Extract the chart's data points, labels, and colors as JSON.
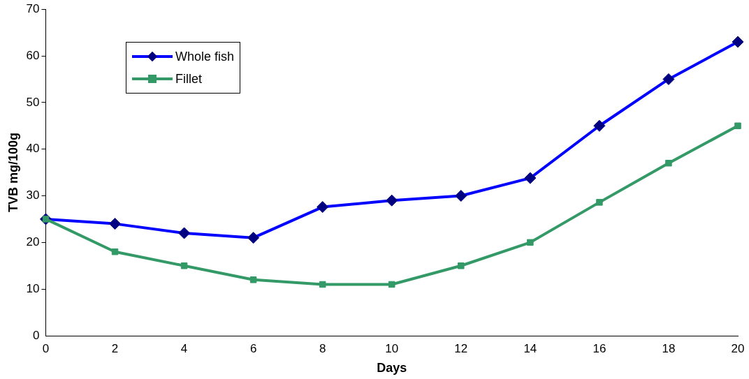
{
  "chart_data": {
    "type": "line",
    "xlabel": "Days",
    "ylabel": "TVB mg/100g",
    "x": [
      0,
      2,
      4,
      6,
      8,
      10,
      12,
      14,
      16,
      18,
      20
    ],
    "series": [
      {
        "name": "Whole fish",
        "color": "#0000ff",
        "marker": "diamond",
        "values": [
          25,
          24,
          22,
          21,
          27.6,
          29,
          30,
          33.8,
          45,
          55,
          63
        ]
      },
      {
        "name": "Fillet",
        "color": "#339966",
        "marker": "square",
        "values": [
          25,
          18,
          15,
          12,
          11,
          11,
          15,
          20,
          28.6,
          37,
          45
        ]
      }
    ],
    "xlim": [
      0,
      20
    ],
    "xticks": [
      0,
      2,
      4,
      6,
      8,
      10,
      12,
      14,
      16,
      18,
      20
    ],
    "ylim": [
      0,
      70
    ],
    "yticks": [
      0,
      10,
      20,
      30,
      40,
      50,
      60,
      70
    ],
    "grid": false,
    "legend": "top left",
    "line_style": "solid"
  }
}
